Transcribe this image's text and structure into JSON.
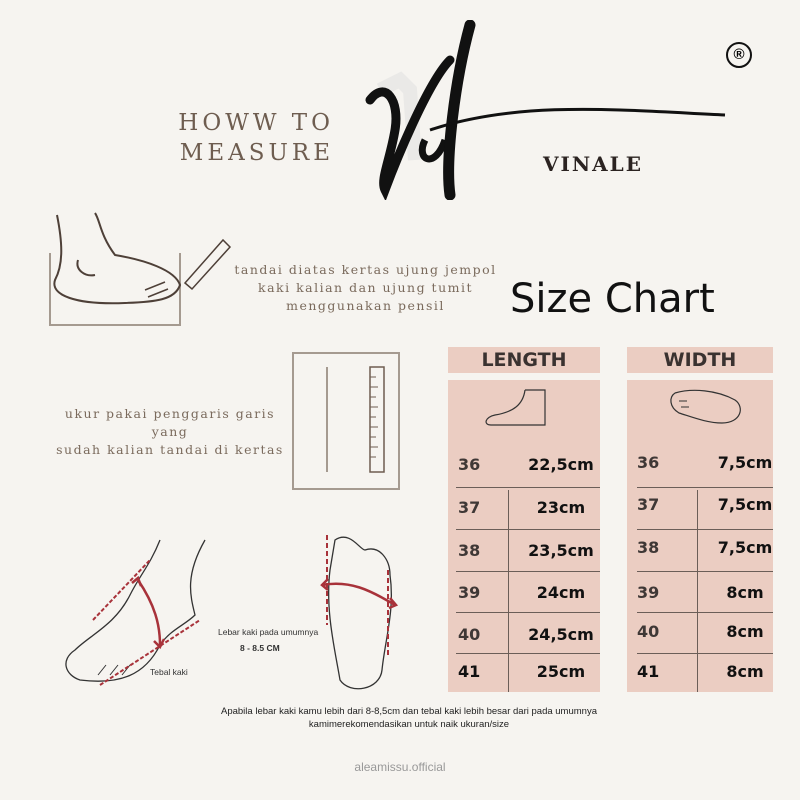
{
  "header": {
    "title_line1": "HOWW TO",
    "title_line2": "MEASURE",
    "brand": "VINALE",
    "registered_mark": "®",
    "logo_text": "Vf"
  },
  "steps": [
    {
      "text_lines": [
        "tandai diatas kertas ujung jempol",
        "kaki kalian dan ujung tumit",
        "menggunakan pensil"
      ]
    },
    {
      "text_lines": [
        "ukur pakai penggaris garis yang",
        "sudah kalian tandai di kertas"
      ]
    }
  ],
  "diagrams": {
    "thickness_label": "Tebal kaki",
    "width_label": "Lebar kaki pada umumnya",
    "width_value": "8 - 8.5 CM"
  },
  "size_chart": {
    "title": "Size Chart",
    "length": {
      "header": "LENGTH",
      "rows": [
        {
          "size": "36",
          "value": "22,5cm"
        },
        {
          "size": "37",
          "value": "23cm"
        },
        {
          "size": "38",
          "value": "23,5cm"
        },
        {
          "size": "39",
          "value": "24cm"
        },
        {
          "size": "40",
          "value": "24,5cm"
        },
        {
          "size": "41",
          "value": "25cm"
        }
      ]
    },
    "width": {
      "header": "WIDTH",
      "rows": [
        {
          "size": "36",
          "value": "7,5cm"
        },
        {
          "size": "37",
          "value": "7,5cm"
        },
        {
          "size": "38",
          "value": "7,5cm"
        },
        {
          "size": "39",
          "value": "8cm"
        },
        {
          "size": "40",
          "value": "8cm"
        },
        {
          "size": "41",
          "value": "8cm"
        }
      ]
    }
  },
  "note": "Apabila lebar kaki kamu lebih dari 8-8,5cm dan tebal kaki lebih besar dari pada umumnya kamimerekomendasikan untuk naik ukuran/size",
  "footer": "aleamissu.official",
  "colors": {
    "background": "#f6f4f0",
    "table_fill": "#ebcdc2",
    "measure_red": "#a8323a",
    "title_brown": "#6e5d50"
  }
}
